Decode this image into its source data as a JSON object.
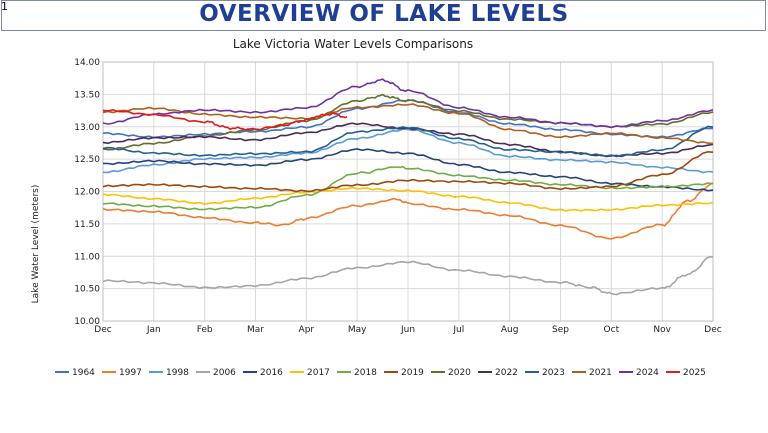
{
  "page": {
    "corner_number": "1",
    "title": "OVERVIEW OF LAKE LEVELS"
  },
  "chart_data": {
    "type": "line",
    "title": "Lake Victoria Water Levels Comparisons",
    "xlabel": "",
    "ylabel": "Lake Water  Level (meters)",
    "ylim": [
      10.0,
      14.0
    ],
    "y_ticks": [
      "10.00",
      "10.50",
      "11.00",
      "11.50",
      "12.00",
      "12.50",
      "13.00",
      "13.50",
      "14.00"
    ],
    "x_ticks": [
      "Dec",
      "Jan",
      "Feb",
      "Mar",
      "Apr",
      "May",
      "Jun",
      "Jul",
      "Aug",
      "Sep",
      "Oct",
      "Nov",
      "Dec"
    ],
    "x_range": [
      0,
      12
    ],
    "grid": true,
    "legend_position": "bottom",
    "series": [
      {
        "name": "1964",
        "color": "#4472c4",
        "x": [
          0,
          1,
          2,
          3,
          4,
          5,
          6,
          7,
          8,
          9,
          10,
          11,
          12
        ],
        "values": [
          12.9,
          12.85,
          12.88,
          12.92,
          13.0,
          13.28,
          13.4,
          13.22,
          13.05,
          12.95,
          12.88,
          12.85,
          12.98
        ]
      },
      {
        "name": "1997",
        "color": "#ed7d31",
        "x": [
          0,
          1,
          2,
          3,
          3.5,
          4,
          5,
          5.8,
          6,
          7,
          8,
          9,
          10,
          11,
          11.5,
          12
        ],
        "values": [
          11.72,
          11.68,
          11.6,
          11.52,
          11.48,
          11.58,
          11.78,
          11.88,
          11.82,
          11.72,
          11.62,
          11.48,
          11.28,
          11.48,
          11.85,
          12.12
        ]
      },
      {
        "name": "1998",
        "color": "#5b9bd5",
        "x": [
          0,
          1,
          2,
          3,
          4,
          5,
          6,
          7,
          8,
          9,
          10,
          11,
          12
        ],
        "values": [
          12.3,
          12.42,
          12.5,
          12.52,
          12.6,
          12.82,
          12.95,
          12.75,
          12.55,
          12.48,
          12.45,
          12.38,
          12.3
        ]
      },
      {
        "name": "2006",
        "color": "#a5a5a5",
        "x": [
          0,
          1,
          2,
          3,
          4,
          5,
          6,
          7,
          8,
          9,
          9.6,
          10,
          11,
          11.5,
          12
        ],
        "values": [
          10.62,
          10.58,
          10.52,
          10.55,
          10.65,
          10.82,
          10.92,
          10.78,
          10.68,
          10.6,
          10.52,
          10.42,
          10.5,
          10.72,
          11.0
        ]
      },
      {
        "name": "2016",
        "color": "#264478",
        "x": [
          0,
          1,
          2,
          3,
          4,
          5,
          6,
          7,
          8,
          9,
          10,
          11,
          12
        ],
        "values": [
          12.43,
          12.48,
          12.42,
          12.4,
          12.5,
          12.65,
          12.58,
          12.42,
          12.3,
          12.22,
          12.12,
          12.08,
          12.02
        ]
      },
      {
        "name": "2017",
        "color": "#ffc000",
        "x": [
          0,
          1,
          2,
          3,
          4,
          5,
          6,
          7,
          8,
          9,
          10,
          11,
          12
        ],
        "values": [
          11.95,
          11.88,
          11.82,
          11.9,
          11.98,
          12.05,
          12.02,
          11.92,
          11.82,
          11.72,
          11.72,
          11.78,
          11.82
        ]
      },
      {
        "name": "2018",
        "color": "#70ad47",
        "x": [
          0,
          1,
          2,
          3,
          4,
          5,
          5.8,
          6,
          7,
          8,
          9,
          10,
          11,
          12
        ],
        "values": [
          11.82,
          11.78,
          11.72,
          11.75,
          11.95,
          12.28,
          12.38,
          12.35,
          12.25,
          12.18,
          12.1,
          12.05,
          12.08,
          12.12
        ]
      },
      {
        "name": "2019",
        "color": "#9e480e",
        "x": [
          0,
          1,
          2,
          3,
          4,
          5,
          6,
          7,
          8,
          9,
          10,
          11,
          12
        ],
        "values": [
          12.08,
          12.1,
          12.08,
          12.05,
          12.0,
          12.1,
          12.18,
          12.15,
          12.12,
          12.05,
          12.08,
          12.25,
          12.62
        ]
      },
      {
        "name": "2020",
        "color": "#636f2e",
        "x": [
          0,
          1,
          2,
          3,
          4,
          5,
          5.5,
          6,
          7,
          8,
          9,
          10,
          11,
          12
        ],
        "values": [
          12.65,
          12.75,
          12.85,
          12.95,
          13.1,
          13.4,
          13.48,
          13.4,
          13.25,
          13.12,
          13.05,
          13.0,
          13.05,
          13.22
        ]
      },
      {
        "name": "2022",
        "color": "#4a2d55",
        "x": [
          0,
          1,
          2,
          3,
          4,
          5,
          6,
          7,
          8,
          9,
          10,
          11,
          12
        ],
        "values": [
          12.75,
          12.82,
          12.85,
          12.8,
          12.9,
          13.05,
          12.98,
          12.88,
          12.72,
          12.62,
          12.55,
          12.58,
          12.72
        ]
      },
      {
        "name": "2023",
        "color": "#255e91",
        "x": [
          0,
          1,
          2,
          3,
          4,
          5,
          6,
          7,
          8,
          9,
          10,
          11,
          12
        ],
        "values": [
          12.68,
          12.6,
          12.55,
          12.58,
          12.62,
          12.92,
          12.98,
          12.82,
          12.65,
          12.6,
          12.55,
          12.65,
          13.0
        ]
      },
      {
        "name": "2021",
        "color": "#b05d1f",
        "x": [
          0,
          1,
          2,
          3,
          4,
          5,
          6,
          7,
          8,
          9,
          10,
          11,
          12
        ],
        "values": [
          13.22,
          13.28,
          13.2,
          13.15,
          13.12,
          13.3,
          13.35,
          13.2,
          12.95,
          12.85,
          12.9,
          12.82,
          12.75
        ]
      },
      {
        "name": "2024",
        "color": "#7030a0",
        "x": [
          0,
          1,
          2,
          3,
          4,
          5,
          5.5,
          6,
          7,
          8,
          9,
          10,
          11,
          12
        ],
        "values": [
          13.05,
          13.2,
          13.25,
          13.22,
          13.3,
          13.62,
          13.72,
          13.55,
          13.3,
          13.15,
          13.05,
          13.0,
          13.1,
          13.25
        ]
      },
      {
        "name": "2025",
        "color": "#e01b1b",
        "x": [
          0,
          1,
          2,
          2.5,
          3,
          3.5,
          4,
          4.2,
          4.5,
          4.8
        ],
        "values": [
          13.25,
          13.18,
          13.08,
          12.98,
          12.96,
          13.02,
          13.1,
          13.16,
          13.2,
          13.15
        ]
      }
    ]
  }
}
